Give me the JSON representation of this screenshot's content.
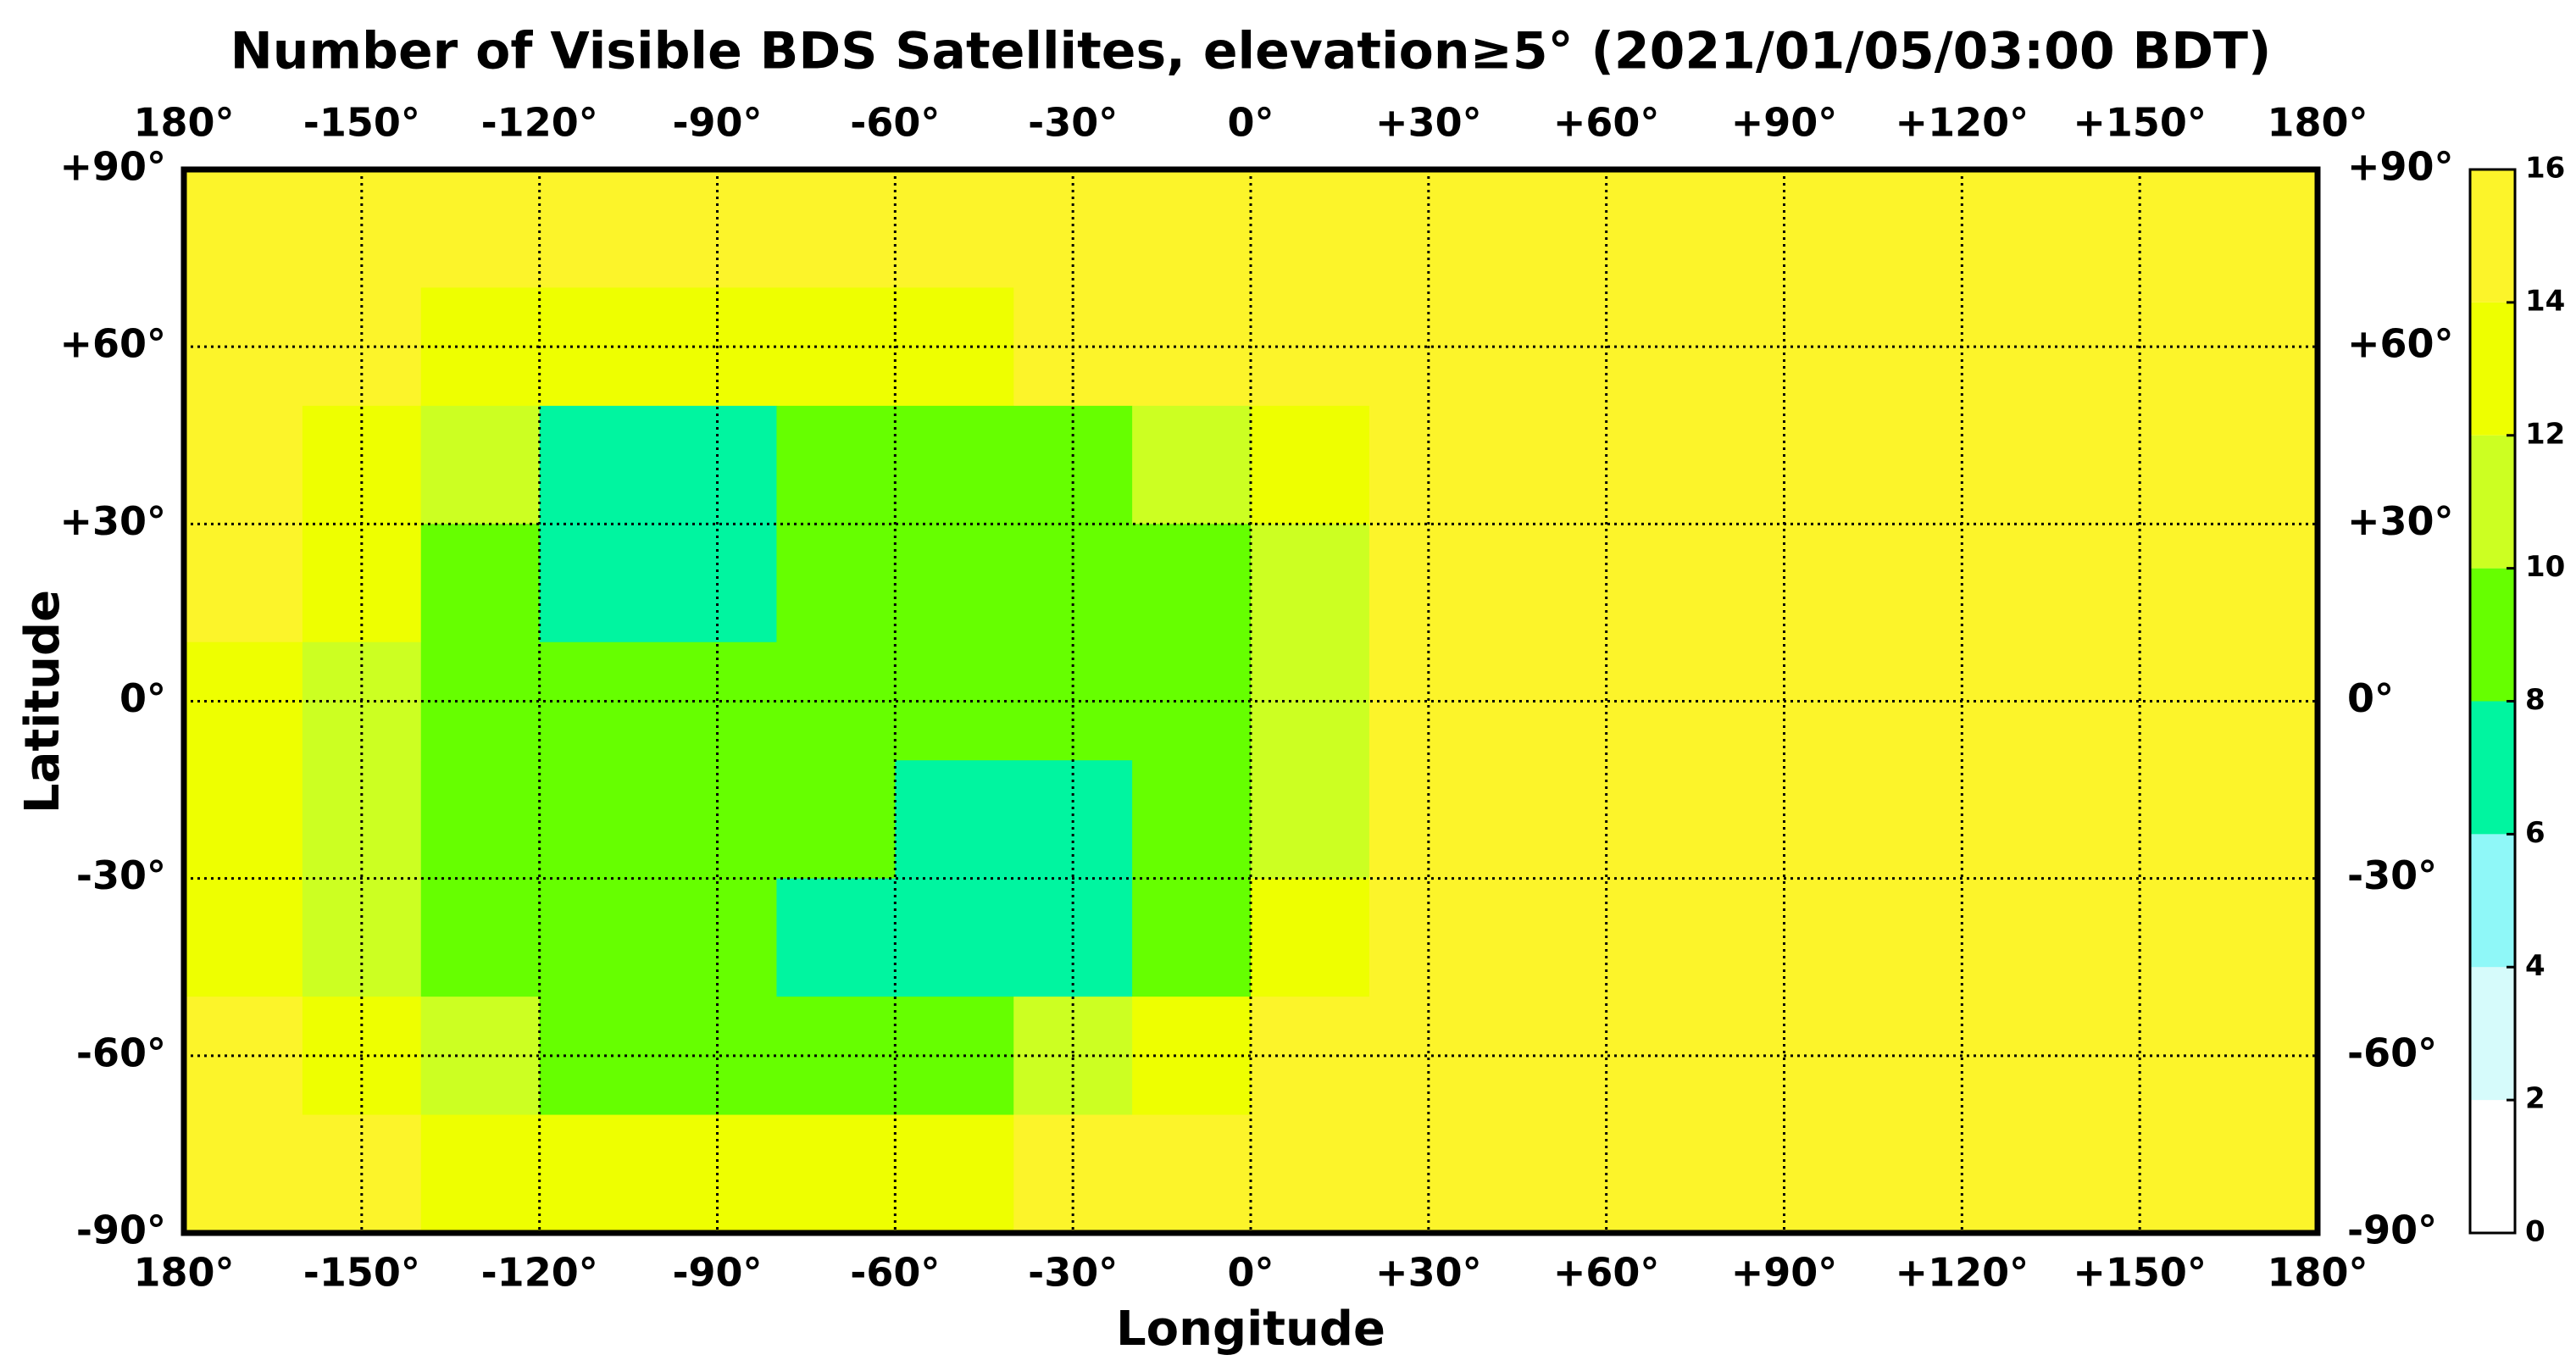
{
  "chart_data": {
    "type": "heatmap",
    "title": "Number of Visible BDS Satellites, elevation≥5° (2021/01/05/03:00 BDT)",
    "x_label": "Longitude",
    "y_label": "Latitude",
    "xlim": [
      -180,
      180
    ],
    "ylim": [
      -90,
      90
    ],
    "xticks": [
      {
        "value": -180,
        "label": "180°"
      },
      {
        "value": -150,
        "label": "-150°"
      },
      {
        "value": -120,
        "label": "-120°"
      },
      {
        "value": -90,
        "label": "-90°"
      },
      {
        "value": -60,
        "label": "-60°"
      },
      {
        "value": -30,
        "label": "-30°"
      },
      {
        "value": 0,
        "label": "0°"
      },
      {
        "value": 30,
        "label": "+30°"
      },
      {
        "value": 60,
        "label": "+60°"
      },
      {
        "value": 90,
        "label": "+90°"
      },
      {
        "value": 120,
        "label": "+120°"
      },
      {
        "value": 150,
        "label": "+150°"
      },
      {
        "value": 180,
        "label": "180°"
      }
    ],
    "yticks": [
      {
        "value": 90,
        "label": "+90°"
      },
      {
        "value": 60,
        "label": "+60°"
      },
      {
        "value": 30,
        "label": "+30°"
      },
      {
        "value": 0,
        "label": "0°"
      },
      {
        "value": -30,
        "label": "-30°"
      },
      {
        "value": -60,
        "label": "-60°"
      },
      {
        "value": -90,
        "label": "-90°"
      }
    ],
    "grid": true,
    "x": [
      -170,
      -150,
      -130,
      -110,
      -90,
      -70,
      -50,
      -30,
      -10,
      10,
      30,
      50,
      70,
      90,
      110,
      130,
      150,
      170
    ],
    "y": [
      80,
      60,
      40,
      20,
      0,
      -20,
      -40,
      -60,
      -80
    ],
    "z": [
      [
        15,
        15,
        15,
        15,
        15,
        15,
        15,
        15,
        15,
        15,
        15,
        15,
        15,
        15,
        15,
        15,
        15,
        15
      ],
      [
        15,
        15,
        13,
        13,
        13,
        13,
        13,
        15,
        15,
        15,
        15,
        15,
        15,
        15,
        15,
        15,
        15,
        15
      ],
      [
        15,
        13,
        11,
        7,
        7,
        9,
        9,
        9,
        11,
        13,
        15,
        15,
        15,
        15,
        15,
        15,
        15,
        15
      ],
      [
        15,
        13,
        9,
        7,
        7,
        9,
        9,
        9,
        9,
        11,
        15,
        15,
        15,
        15,
        15,
        15,
        15,
        15
      ],
      [
        13,
        11,
        9,
        9,
        9,
        9,
        9,
        9,
        9,
        11,
        15,
        15,
        15,
        15,
        15,
        15,
        15,
        15
      ],
      [
        13,
        11,
        9,
        9,
        9,
        9,
        7,
        7,
        9,
        11,
        15,
        15,
        15,
        15,
        15,
        15,
        15,
        15
      ],
      [
        13,
        11,
        9,
        9,
        9,
        7,
        7,
        7,
        9,
        13,
        15,
        15,
        15,
        15,
        15,
        15,
        15,
        15
      ],
      [
        15,
        13,
        11,
        9,
        9,
        9,
        9,
        11,
        13,
        15,
        15,
        15,
        15,
        15,
        15,
        15,
        15,
        15
      ],
      [
        15,
        15,
        13,
        13,
        13,
        13,
        13,
        15,
        15,
        15,
        15,
        15,
        15,
        15,
        15,
        15,
        15,
        15
      ]
    ],
    "colorbar": {
      "levels": [
        0,
        2,
        4,
        6,
        8,
        10,
        12,
        14,
        16
      ],
      "colors": [
        "#ffffff",
        "#d6fbfb",
        "#8ff8f8",
        "#00f5a0",
        "#66ff00",
        "#ccff22",
        "#eeff00",
        "#fcf42a"
      ]
    }
  }
}
